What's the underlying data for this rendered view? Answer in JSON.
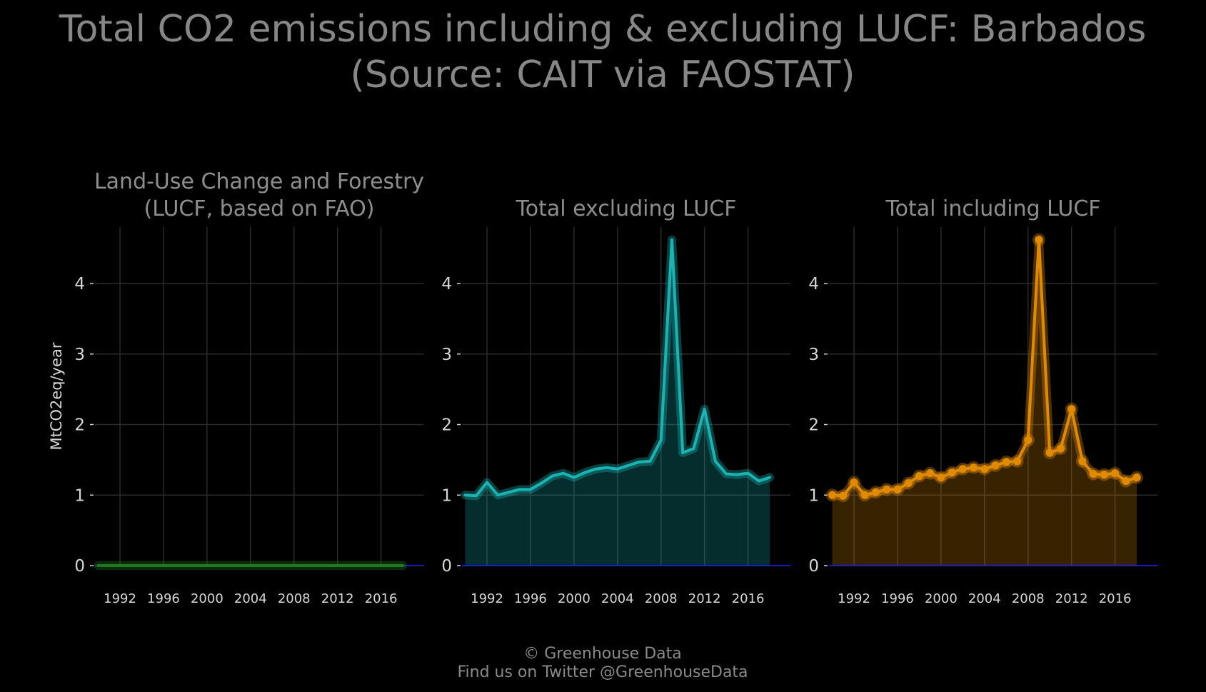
{
  "title_lines": [
    "Total CO2 emissions including & excluding LUCF: Barbados",
    "(Source: CAIT via FAOSTAT)"
  ],
  "footer_lines": [
    "© Greenhouse Data",
    "Find us on Twitter @GreenhouseData"
  ],
  "colors": {
    "background": "#000000",
    "grid": "#2b2b2b",
    "text_muted": "#878787",
    "tick_text": "#d6d6d6",
    "zero_line": "#1a1aff"
  },
  "chart_data": [
    {
      "type": "area",
      "title_lines": [
        "Land-Use Change and Forestry",
        "(LUCF, based on FAO)"
      ],
      "ylabel": "MtCO2eq/year",
      "color": "#1f7a1f",
      "markers": false,
      "x": [
        1990,
        1991,
        1992,
        1993,
        1994,
        1995,
        1996,
        1997,
        1998,
        1999,
        2000,
        2001,
        2002,
        2003,
        2004,
        2005,
        2006,
        2007,
        2008,
        2009,
        2010,
        2011,
        2012,
        2013,
        2014,
        2015,
        2016,
        2017,
        2018
      ],
      "values": [
        0,
        0,
        0,
        0,
        0,
        0,
        0,
        0,
        0,
        0,
        0,
        0,
        0,
        0,
        0,
        0,
        0,
        0,
        0,
        0,
        0,
        0,
        0,
        0,
        0,
        0,
        0,
        0,
        0
      ],
      "x_ticks": [
        "1992",
        "1996",
        "2000",
        "2004",
        "2008",
        "2012",
        "2016"
      ],
      "y_ticks": [
        "0",
        "1",
        "2",
        "3",
        "4"
      ],
      "ylim": [
        0,
        4.8
      ],
      "xlim": [
        1989.7,
        2019.9
      ],
      "grid": true
    },
    {
      "type": "area",
      "title_lines": [
        "Total excluding LUCF"
      ],
      "ylabel": "",
      "color": "#19b3b3",
      "markers": false,
      "x": [
        1990,
        1991,
        1992,
        1993,
        1994,
        1995,
        1996,
        1997,
        1998,
        1999,
        2000,
        2001,
        2002,
        2003,
        2004,
        2005,
        2006,
        2007,
        2008,
        2009,
        2010,
        2011,
        2012,
        2013,
        2014,
        2015,
        2016,
        2017,
        2018
      ],
      "values": [
        1.0,
        0.99,
        1.18,
        1.0,
        1.04,
        1.08,
        1.08,
        1.17,
        1.27,
        1.31,
        1.25,
        1.32,
        1.37,
        1.39,
        1.37,
        1.42,
        1.47,
        1.48,
        1.78,
        4.62,
        1.6,
        1.66,
        2.22,
        1.48,
        1.3,
        1.29,
        1.31,
        1.2,
        1.25
      ],
      "x_ticks": [
        "1992",
        "1996",
        "2000",
        "2004",
        "2008",
        "2012",
        "2016"
      ],
      "y_ticks": [
        "0",
        "1",
        "2",
        "3",
        "4"
      ],
      "ylim": [
        0,
        4.8
      ],
      "xlim": [
        1989.7,
        2019.9
      ],
      "grid": true
    },
    {
      "type": "area",
      "title_lines": [
        "Total including LUCF"
      ],
      "ylabel": "",
      "color": "#e08a00",
      "markers": true,
      "x": [
        1990,
        1991,
        1992,
        1993,
        1994,
        1995,
        1996,
        1997,
        1998,
        1999,
        2000,
        2001,
        2002,
        2003,
        2004,
        2005,
        2006,
        2007,
        2008,
        2009,
        2010,
        2011,
        2012,
        2013,
        2014,
        2015,
        2016,
        2017,
        2018
      ],
      "values": [
        1.0,
        0.99,
        1.18,
        1.0,
        1.04,
        1.08,
        1.08,
        1.17,
        1.27,
        1.31,
        1.25,
        1.32,
        1.37,
        1.39,
        1.37,
        1.42,
        1.47,
        1.48,
        1.78,
        4.62,
        1.6,
        1.66,
        2.22,
        1.48,
        1.3,
        1.29,
        1.31,
        1.2,
        1.25
      ],
      "x_ticks": [
        "1992",
        "1996",
        "2000",
        "2004",
        "2008",
        "2012",
        "2016"
      ],
      "y_ticks": [
        "0",
        "1",
        "2",
        "3",
        "4"
      ],
      "ylim": [
        0,
        4.8
      ],
      "xlim": [
        1989.7,
        2019.9
      ],
      "grid": true
    }
  ]
}
